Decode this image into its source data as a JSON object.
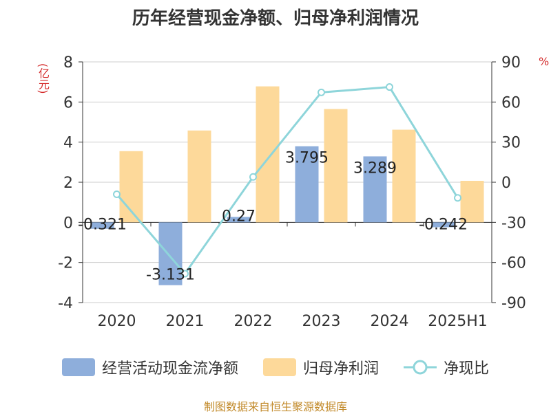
{
  "title": "历年经营现金净额、归母净利润情况",
  "left_unit": "(亿元)",
  "right_unit": "%",
  "footer": "制图数据来自恒生聚源数据库",
  "legend": [
    {
      "label": "经营活动现金流净额",
      "color": "#8eaedb"
    },
    {
      "label": "归母净利润",
      "color": "#fdd99a"
    },
    {
      "label": "净现比",
      "color": "#8ed5da"
    }
  ],
  "chart_data": {
    "type": "bar",
    "categories": [
      "2020",
      "2021",
      "2022",
      "2023",
      "2024",
      "2025H1"
    ],
    "series": [
      {
        "name": "经营活动现金流净额",
        "type": "bar",
        "axis": "left",
        "values": [
          -0.321,
          -3.131,
          0.27,
          3.795,
          3.289,
          -0.242
        ],
        "labels": [
          "-0.321",
          "-3.131",
          "0.27",
          "3.795",
          "3.289",
          "-0.242"
        ],
        "color": "#8eaedb"
      },
      {
        "name": "归母净利润",
        "type": "bar",
        "axis": "left",
        "values": [
          3.55,
          4.58,
          6.78,
          5.65,
          4.62,
          2.07
        ],
        "color": "#fdd99a"
      },
      {
        "name": "净现比",
        "type": "line",
        "axis": "right",
        "values": [
          -9.0,
          -68.4,
          4.0,
          67.2,
          71.2,
          -11.7
        ],
        "color": "#8ed5da"
      }
    ],
    "y_left": {
      "min": -4,
      "max": 8,
      "ticks": [
        "-4",
        "-2",
        "0",
        "2",
        "4",
        "6",
        "8"
      ]
    },
    "y_right": {
      "min": -90,
      "max": 90,
      "ticks": [
        "-90",
        "-60",
        "-30",
        "0",
        "30",
        "60",
        "90"
      ]
    },
    "grid": true,
    "legend_position": "bottom"
  }
}
